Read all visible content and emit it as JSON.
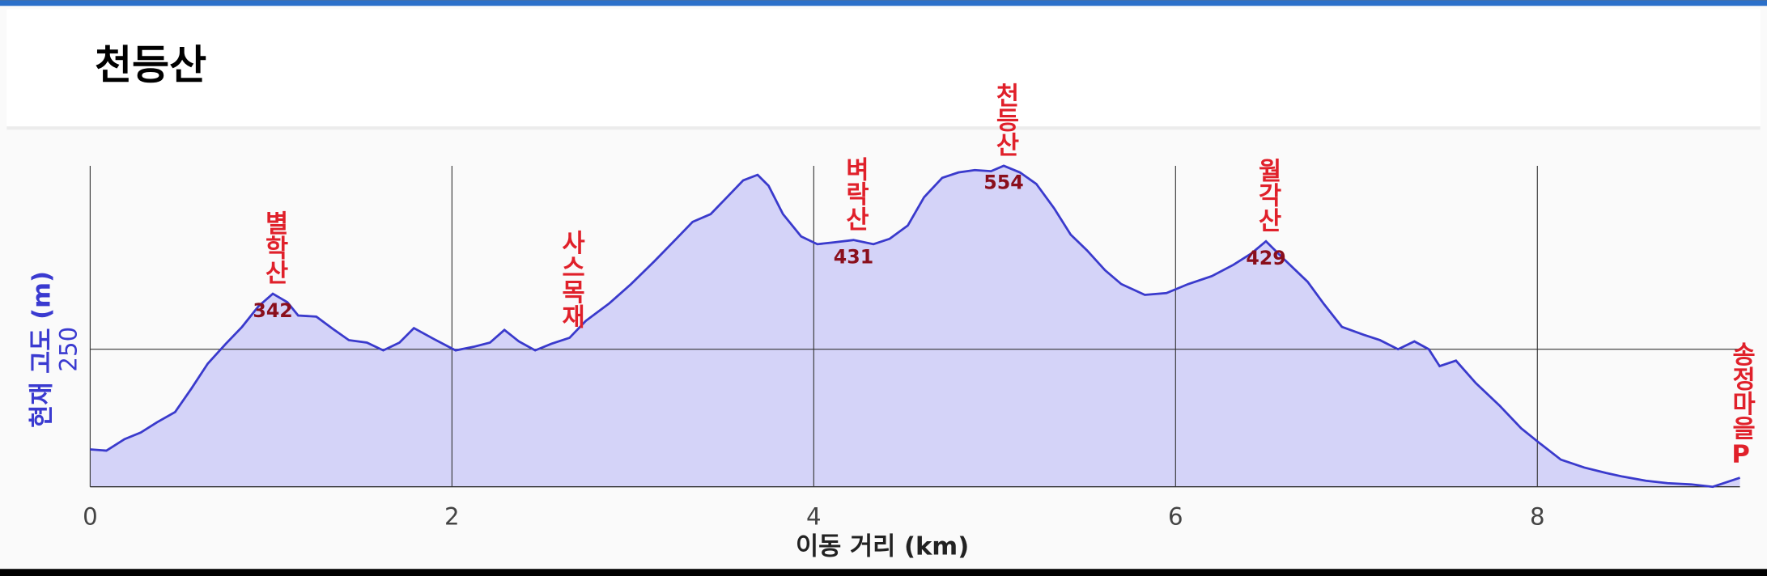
{
  "chart_data": {
    "type": "area",
    "title": "천등산",
    "x_label": "이동 거리 (km)",
    "y_label": "현재 고도 (m)",
    "x": [
      0,
      0.09,
      0.19,
      0.28,
      0.37,
      0.47,
      0.56,
      0.65,
      0.75,
      0.84,
      0.93,
      1.01,
      1.09,
      1.15,
      1.25,
      1.34,
      1.43,
      1.53,
      1.62,
      1.71,
      1.79,
      1.9,
      2.02,
      2.12,
      2.21,
      2.29,
      2.37,
      2.46,
      2.55,
      2.65,
      2.74,
      2.87,
      2.99,
      3.12,
      3.24,
      3.33,
      3.43,
      3.52,
      3.61,
      3.69,
      3.75,
      3.83,
      3.93,
      4.02,
      4.11,
      4.22,
      4.33,
      4.42,
      4.52,
      4.61,
      4.71,
      4.8,
      4.89,
      4.98,
      5.05,
      5.14,
      5.23,
      5.33,
      5.42,
      5.51,
      5.61,
      5.7,
      5.83,
      5.95,
      6.07,
      6.2,
      6.32,
      6.42,
      6.5,
      6.6,
      6.73,
      6.82,
      6.92,
      7.04,
      7.13,
      7.23,
      7.32,
      7.4,
      7.46,
      7.55,
      7.66,
      7.79,
      7.91,
      8.01,
      8.13,
      8.26,
      8.38,
      8.47,
      8.6,
      8.72,
      8.85,
      8.97,
      9.12
    ],
    "values": [
      84,
      82,
      101,
      112,
      129,
      146,
      185,
      226,
      259,
      287,
      321,
      342,
      328,
      306,
      304,
      284,
      265,
      261,
      248,
      261,
      285,
      267,
      248,
      254,
      261,
      282,
      263,
      248,
      259,
      269,
      297,
      326,
      358,
      396,
      433,
      461,
      474,
      502,
      530,
      539,
      521,
      474,
      437,
      424,
      427,
      431,
      424,
      433,
      455,
      502,
      534,
      543,
      547,
      545,
      554,
      543,
      524,
      483,
      440,
      414,
      381,
      358,
      340,
      343,
      358,
      371,
      390,
      409,
      429,
      399,
      362,
      325,
      287,
      274,
      265,
      250,
      263,
      250,
      222,
      231,
      194,
      157,
      119,
      95,
      67,
      54,
      45,
      39,
      32,
      28,
      26,
      22,
      37
    ],
    "line_color": "#3a3acc",
    "fill_color": "#d4d3f8",
    "xlim": [
      0,
      9.12
    ],
    "ylim": [
      22,
      554
    ],
    "xticks": [
      0,
      2,
      4,
      6,
      8
    ],
    "yticks": [
      250
    ],
    "grid": true,
    "annotations": [
      {
        "text": "별학산",
        "x": 1.01,
        "value": 342
      },
      {
        "text": "사스목재",
        "x": 2.65
      },
      {
        "text": "벼락산",
        "x": 4.22,
        "value": 431
      },
      {
        "text": "천등산",
        "x": 5.05,
        "value": 554
      },
      {
        "text": "월각산",
        "x": 6.5,
        "value": 429
      },
      {
        "text": "송정마을P",
        "x": 9.12
      }
    ]
  }
}
